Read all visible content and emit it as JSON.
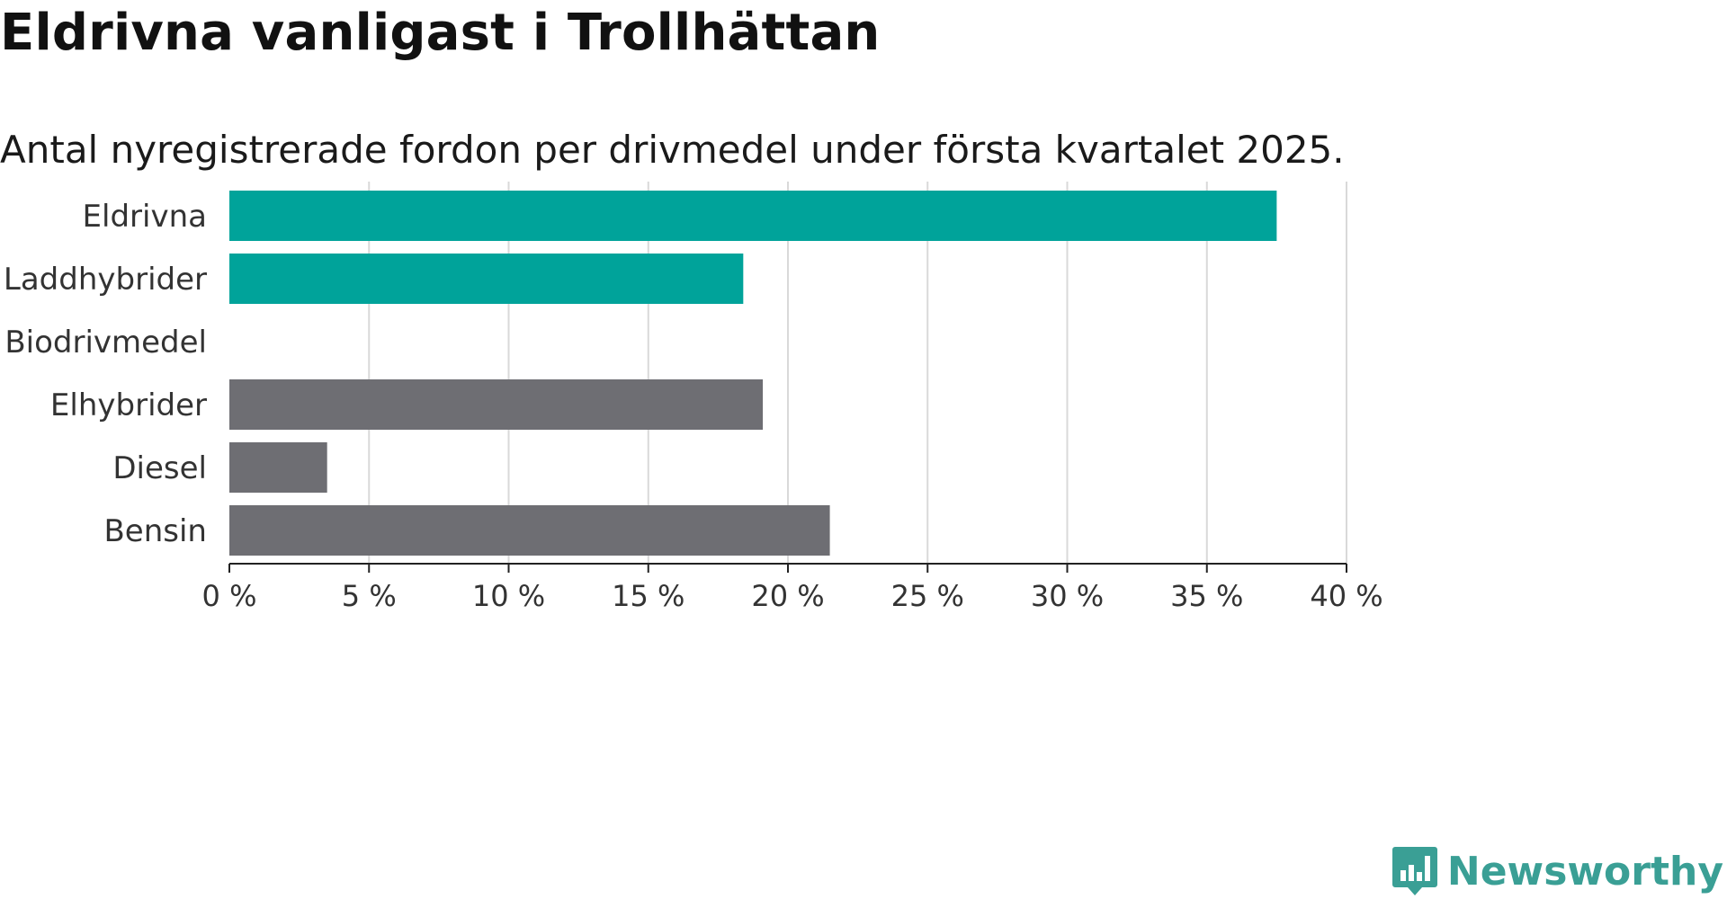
{
  "title": "Eldrivna vanligast i Trollhättan",
  "subtitle": "Antal nyregistrerade fordon per drivmedel under första kvartalet 2025.",
  "brand": {
    "name": "Newsworthy",
    "icon": "newsworthy-logo-icon"
  },
  "colors": {
    "highlight": "#00a39a",
    "default": "#6e6e73",
    "grid": "#d9d9d9",
    "axis": "#222222"
  },
  "chart_data": {
    "type": "bar",
    "orientation": "horizontal",
    "categories": [
      "Eldrivna",
      "Laddhybrider",
      "Biodrivmedel",
      "Elhybrider",
      "Diesel",
      "Bensin"
    ],
    "values": [
      37.5,
      18.4,
      0,
      19.1,
      3.5,
      21.5
    ],
    "highlighted": [
      true,
      true,
      false,
      false,
      false,
      false
    ],
    "xlim": [
      0,
      40
    ],
    "xticks": [
      0,
      5,
      10,
      15,
      20,
      25,
      30,
      35,
      40
    ],
    "xtick_labels": [
      "0 %",
      "5 %",
      "10 %",
      "15 %",
      "20 %",
      "25 %",
      "30 %",
      "35 %",
      "40 %"
    ],
    "grid": true
  }
}
